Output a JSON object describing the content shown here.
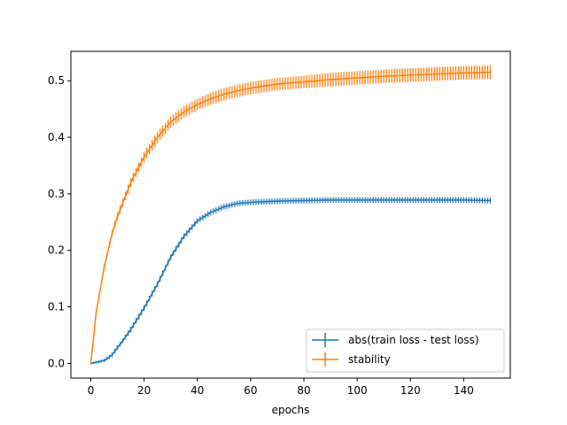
{
  "chart_data": {
    "type": "line",
    "title": "",
    "xlabel": "epochs",
    "ylabel": "",
    "xlim": [
      -7.5,
      157.5
    ],
    "ylim": [
      -0.026,
      0.552
    ],
    "xticks": [
      0,
      20,
      40,
      60,
      80,
      100,
      120,
      140
    ],
    "xtick_labels": [
      "0",
      "20",
      "40",
      "60",
      "80",
      "100",
      "120",
      "140"
    ],
    "yticks": [
      0.0,
      0.1,
      0.2,
      0.3,
      0.4,
      0.5
    ],
    "ytick_labels": [
      "0.0",
      "0.1",
      "0.2",
      "0.3",
      "0.4",
      "0.5"
    ],
    "grid": false,
    "legend_position": "lower-right",
    "series": [
      {
        "name": "abs(train loss - test loss)",
        "color": "#1f77b4",
        "x": [
          0,
          5,
          8,
          10,
          12,
          15,
          20,
          25,
          30,
          35,
          40,
          45,
          50,
          55,
          60,
          65,
          70,
          80,
          90,
          100,
          110,
          120,
          130,
          140,
          150
        ],
        "y": [
          0.0,
          0.005,
          0.015,
          0.028,
          0.04,
          0.06,
          0.098,
          0.14,
          0.188,
          0.225,
          0.252,
          0.267,
          0.277,
          0.283,
          0.285,
          0.286,
          0.287,
          0.288,
          0.289,
          0.289,
          0.289,
          0.289,
          0.289,
          0.289,
          0.288
        ],
        "err": [
          0.002,
          0.003,
          0.004,
          0.004,
          0.004,
          0.005,
          0.005,
          0.005,
          0.005,
          0.005,
          0.005,
          0.005,
          0.005,
          0.005,
          0.005,
          0.005,
          0.005,
          0.005,
          0.005,
          0.005,
          0.005,
          0.005,
          0.005,
          0.005,
          0.005
        ]
      },
      {
        "name": "stability",
        "color": "#ff7f0e",
        "x": [
          0,
          2,
          5,
          8,
          10,
          15,
          20,
          25,
          30,
          35,
          40,
          45,
          50,
          55,
          60,
          70,
          80,
          90,
          100,
          110,
          120,
          130,
          140,
          150
        ],
        "y": [
          0.0,
          0.09,
          0.17,
          0.23,
          0.26,
          0.32,
          0.365,
          0.4,
          0.427,
          0.445,
          0.458,
          0.468,
          0.476,
          0.482,
          0.487,
          0.494,
          0.498,
          0.502,
          0.505,
          0.508,
          0.51,
          0.512,
          0.514,
          0.515
        ],
        "err": [
          0.002,
          0.004,
          0.005,
          0.006,
          0.007,
          0.008,
          0.009,
          0.01,
          0.01,
          0.01,
          0.01,
          0.011,
          0.011,
          0.011,
          0.011,
          0.011,
          0.011,
          0.012,
          0.012,
          0.012,
          0.012,
          0.012,
          0.012,
          0.012
        ]
      }
    ]
  }
}
